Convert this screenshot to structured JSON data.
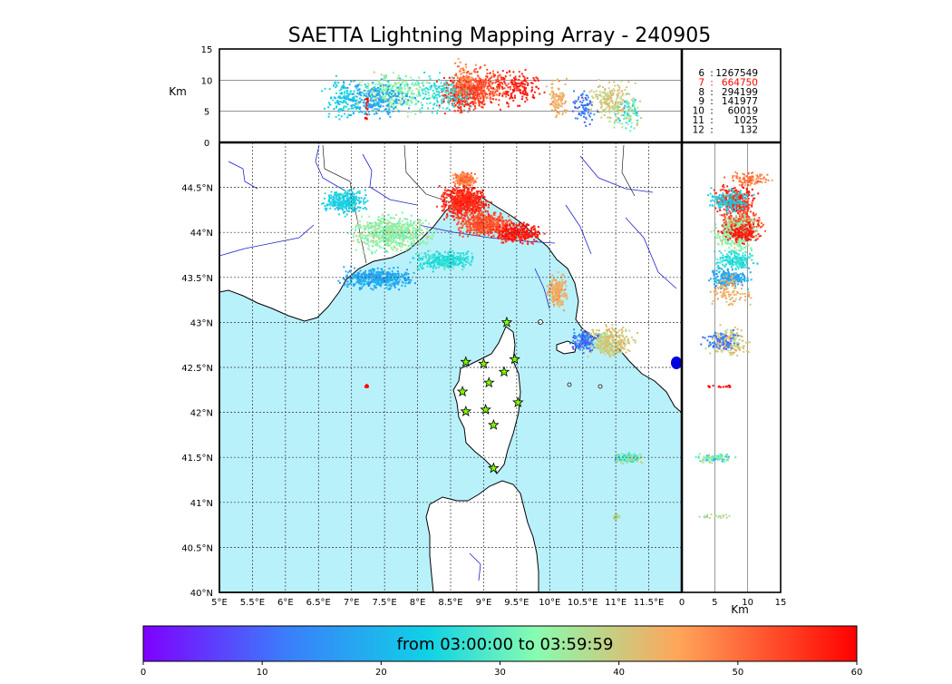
{
  "title": "SAETTA Lightning Mapping Array - 240905",
  "altitude_axis": {
    "unit": "Km",
    "range": [
      0,
      15
    ],
    "ticks": [
      "0",
      "5",
      "10",
      "15"
    ],
    "grid_lines_km": [
      5,
      10
    ]
  },
  "map": {
    "lon_range": [
      5,
      12
    ],
    "lat_range": [
      40,
      45
    ],
    "lon_ticks": [
      "5°E",
      "5.5°E",
      "6°E",
      "6.5°E",
      "7°E",
      "7.5°E",
      "8°E",
      "8.5°E",
      "9°E",
      "9.5°E",
      "10°E",
      "10.5°E",
      "11°E",
      "11.5°E"
    ],
    "lat_ticks": [
      "40°N",
      "40.5°N",
      "41°N",
      "41.5°N",
      "42°N",
      "42.5°N",
      "43°N",
      "43.5°N",
      "44°N",
      "44.5°N"
    ],
    "sea_color": "#b9f1fb",
    "land_color": "#ffffff",
    "river_color": "#2020d0",
    "station_marker": "star-icon",
    "station_color": "#7cfc00",
    "stations": [
      {
        "lon": 9.35,
        "lat": 43.0
      },
      {
        "lon": 8.73,
        "lat": 42.56
      },
      {
        "lon": 9.0,
        "lat": 42.54
      },
      {
        "lon": 9.47,
        "lat": 42.59
      },
      {
        "lon": 9.31,
        "lat": 42.45
      },
      {
        "lon": 9.08,
        "lat": 42.33
      },
      {
        "lon": 8.68,
        "lat": 42.23
      },
      {
        "lon": 9.52,
        "lat": 42.11
      },
      {
        "lon": 8.73,
        "lat": 42.01
      },
      {
        "lon": 9.03,
        "lat": 42.03
      },
      {
        "lon": 9.15,
        "lat": 41.86
      },
      {
        "lon": 9.15,
        "lat": 41.38
      }
    ]
  },
  "stats_table": [
    {
      "key": "6",
      "value": "1267549",
      "color": "#000000"
    },
    {
      "key": "7",
      "value": "664750",
      "color": "#ff0000"
    },
    {
      "key": "8",
      "value": "294199",
      "color": "#000000"
    },
    {
      "key": "9",
      "value": "141977",
      "color": "#000000"
    },
    {
      "key": "10",
      "value": "60019",
      "color": "#000000"
    },
    {
      "key": "11",
      "value": "1025",
      "color": "#000000"
    },
    {
      "key": "12",
      "value": "132",
      "color": "#000000"
    }
  ],
  "colorbar": {
    "label": "from 03:00:00 to 03:59:59",
    "range": [
      0,
      60
    ],
    "ticks": [
      "0",
      "10",
      "20",
      "30",
      "40",
      "50",
      "60"
    ],
    "colormap": [
      "#7f00ff",
      "#3b7dfb",
      "#0fd2e6",
      "#87fcb0",
      "#ffa55a",
      "#ff0000"
    ]
  }
}
